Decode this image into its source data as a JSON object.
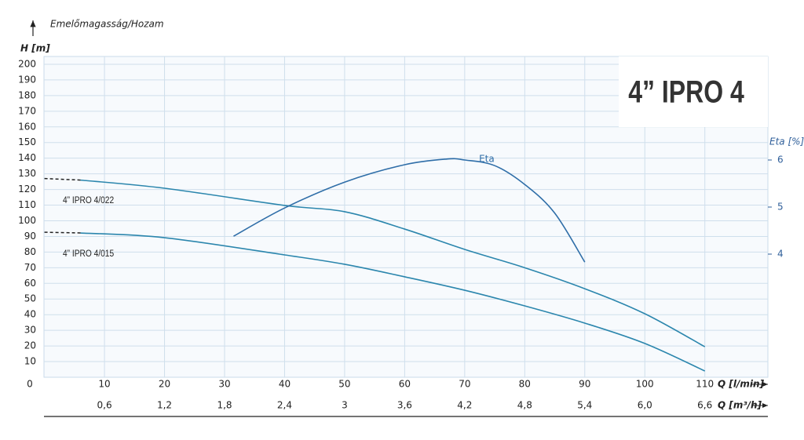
{
  "chart_data": {
    "type": "line",
    "header": "Emelőmagasság/Hozam",
    "title": "4” IPRO 4",
    "y_label": "H [m]",
    "x_label": "Q [l/min]",
    "x2_label": "Q [m³/h]",
    "y2_label": "Eta [%]",
    "xlim": [
      0,
      120.5
    ],
    "xticks": [
      0,
      10,
      20,
      30,
      40,
      50,
      60,
      70,
      80,
      90,
      100,
      110
    ],
    "x2lim": [
      0,
      7.23
    ],
    "x2ticks": [
      {
        "value": 0.6,
        "label": "0,6"
      },
      {
        "value": 1.2,
        "label": "1,2"
      },
      {
        "value": 1.8,
        "label": "1,8"
      },
      {
        "value": 2.4,
        "label": "2,4"
      },
      3,
      {
        "value": 3.6,
        "label": "3,6"
      },
      {
        "value": 4.2,
        "label": "4,2"
      },
      {
        "value": 4.8,
        "label": "4,8"
      },
      {
        "value": 5.4,
        "label": "5,4"
      },
      {
        "value": 6.0,
        "label": "6,0"
      },
      {
        "value": 6.6,
        "label": "6,6"
      }
    ],
    "ylim": [
      0,
      205
    ],
    "yticks": [
      10,
      20,
      30,
      40,
      50,
      60,
      70,
      80,
      90,
      100,
      110,
      120,
      130,
      140,
      150,
      160,
      170,
      180,
      190,
      200
    ],
    "y2lim": [
      1.383,
      8.2
    ],
    "y2ticks": [
      4,
      5,
      6
    ],
    "grid": true,
    "series": [
      {
        "name": "4” IPRO 4/022",
        "color": "#2b86ad",
        "x": [
          0,
          6,
          20,
          40,
          50,
          60,
          70,
          80,
          90,
          100,
          110
        ],
        "values": [
          127,
          126,
          120.8,
          109.8,
          105.8,
          94.7,
          81.7,
          70,
          56.6,
          40.6,
          19.5
        ]
      },
      {
        "name": "4” IPRO 4/015",
        "color": "#2b86ad",
        "x": [
          0,
          6,
          20,
          40,
          50,
          60,
          70,
          80,
          90,
          100,
          110
        ],
        "values": [
          92.7,
          92.2,
          89.2,
          78.2,
          72.2,
          64.2,
          55.6,
          45.6,
          34.6,
          21.6,
          4
        ]
      },
      {
        "name": "Eta",
        "color": "#2f6ea8",
        "axis": "y2",
        "x": [
          31.5,
          40,
          50,
          60,
          67,
          70,
          75,
          80,
          85,
          90
        ],
        "values": [
          4.38,
          4.98,
          5.53,
          5.9,
          6.02,
          6.0,
          5.88,
          5.48,
          4.87,
          3.83
        ]
      }
    ]
  }
}
